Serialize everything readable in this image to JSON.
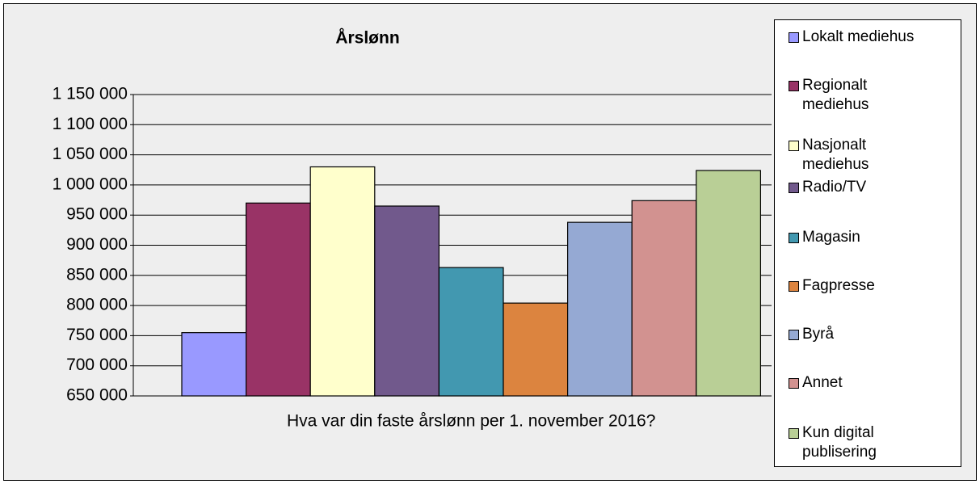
{
  "chart_data": {
    "type": "bar",
    "title": "Årslønn",
    "categories": [
      "Hva var din faste årslønn per 1. november 2016?"
    ],
    "series": [
      {
        "name": "Lokalt mediehus",
        "color": "#9999ff",
        "values": [
          755000
        ]
      },
      {
        "name": "Regionalt mediehus",
        "color": "#993366",
        "values": [
          970000
        ]
      },
      {
        "name": "Nasjonalt mediehus",
        "color": "#ffffcc",
        "values": [
          1030000
        ]
      },
      {
        "name": "Radio/TV",
        "color": "#71598c",
        "values": [
          965000
        ]
      },
      {
        "name": "Magasin",
        "color": "#4298b0",
        "values": [
          863000
        ]
      },
      {
        "name": "Fagpresse",
        "color": "#dc843f",
        "values": [
          804000
        ]
      },
      {
        "name": "Byrå",
        "color": "#95a9d3",
        "values": [
          938000
        ]
      },
      {
        "name": "Annet",
        "color": "#d29290",
        "values": [
          974000
        ]
      },
      {
        "name": "Kun digital publisering",
        "color": "#b9cf96",
        "values": [
          1024000
        ]
      }
    ],
    "ylim": [
      650000,
      1150000
    ],
    "yticks": [
      {
        "value": 650000,
        "label": "650 000"
      },
      {
        "value": 700000,
        "label": "700 000"
      },
      {
        "value": 750000,
        "label": "750 000"
      },
      {
        "value": 800000,
        "label": "800 000"
      },
      {
        "value": 850000,
        "label": "850 000"
      },
      {
        "value": 900000,
        "label": "900 000"
      },
      {
        "value": 950000,
        "label": "950 000"
      },
      {
        "value": 1000000,
        "label": "1 000 000"
      },
      {
        "value": 1050000,
        "label": "1 050 000"
      },
      {
        "value": 1100000,
        "label": "1 100 000"
      },
      {
        "value": 1150000,
        "label": "1 150 000"
      }
    ],
    "grid": true,
    "legend": "right"
  }
}
